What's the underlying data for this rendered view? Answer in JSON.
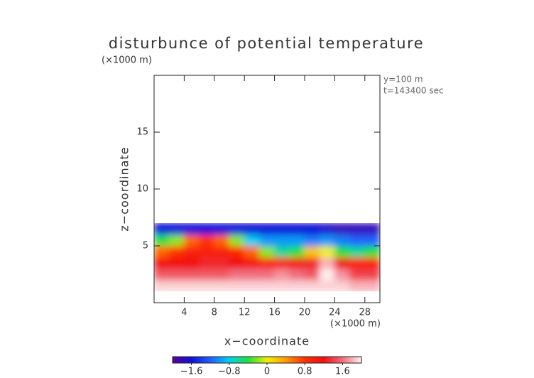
{
  "chart_data": {
    "type": "contour",
    "title": "disturbunce of potential temperature",
    "y_unit": "(×1000 m)",
    "x_unit": "(×1000 m)",
    "annotations": [
      "y=100 m",
      "t=143400 sec"
    ],
    "xlabel": "x−coordinate",
    "ylabel": "z−coordinate",
    "xlim": [
      0,
      30
    ],
    "ylim": [
      0,
      20
    ],
    "xticks": [
      4,
      8,
      12,
      16,
      20,
      24,
      28
    ],
    "yticks": [
      5,
      10,
      15
    ],
    "x": [
      1,
      3,
      5,
      7,
      9,
      11,
      13,
      15,
      17,
      19,
      21,
      23,
      25,
      27,
      29
    ],
    "y": [
      1.5,
      2.5,
      3.5,
      4.5,
      5.5,
      6.5
    ],
    "z": [
      [
        1.9,
        1.9,
        1.9,
        1.9,
        1.9,
        1.9,
        1.9,
        1.9,
        1.9,
        1.9,
        1.9,
        1.9,
        1.9,
        1.8,
        1.8
      ],
      [
        1.5,
        1.5,
        1.5,
        1.5,
        1.5,
        1.6,
        1.6,
        1.6,
        1.7,
        1.6,
        1.5,
        2.0,
        1.7,
        1.4,
        1.4
      ],
      [
        1.2,
        1.2,
        1.2,
        1.3,
        1.3,
        1.2,
        1.1,
        1.0,
        1.0,
        1.1,
        1.3,
        1.8,
        1.2,
        1.0,
        1.0
      ],
      [
        0.6,
        0.8,
        1.0,
        1.0,
        1.0,
        0.9,
        0.6,
        -0.2,
        -0.6,
        -0.4,
        0.2,
        0.0,
        -0.4,
        -0.6,
        -0.4
      ],
      [
        -0.4,
        -0.2,
        0.6,
        0.8,
        0.6,
        -0.2,
        -0.8,
        -1.0,
        -1.0,
        -1.0,
        -1.1,
        -1.0,
        -1.1,
        -1.2,
        -1.2
      ],
      [
        -1.6,
        -1.6,
        -1.6,
        -1.6,
        -1.6,
        -1.6,
        -1.6,
        -1.6,
        -1.6,
        -1.6,
        -1.6,
        -1.7,
        -1.8,
        -1.8,
        -1.8
      ]
    ],
    "clim": [
      -2,
      2
    ],
    "cticks": [
      {
        "value": -1.6,
        "label": "−1.6"
      },
      {
        "value": -0.8,
        "label": "−0.8"
      },
      0,
      0.8,
      1.6
    ],
    "colormap": [
      "#5a00a0",
      "#1010d8",
      "#2060ff",
      "#00d0f0",
      "#20e040",
      "#f0f000",
      "#ff9a00",
      "#ff3000",
      "#f01010",
      "#f07080",
      "#fff0f0"
    ]
  }
}
